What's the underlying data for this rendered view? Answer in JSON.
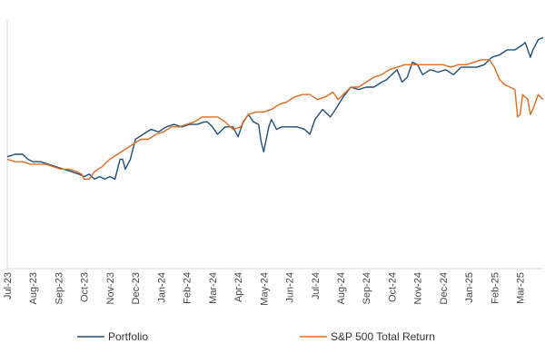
{
  "chart_data": {
    "type": "line",
    "title": "",
    "xlabel": "",
    "ylabel": "",
    "y_axis_labels_shown": false,
    "grid": false,
    "legend_position": "bottom",
    "x_ticks": [
      "Jul-23",
      "Aug-23",
      "Sep-23",
      "Oct-23",
      "Nov-23",
      "Dec-23",
      "Jan-24",
      "Feb-24",
      "Mar-24",
      "Apr-24",
      "May-24",
      "Jun-24",
      "Jul-24",
      "Aug-24",
      "Sep-24",
      "Oct-24",
      "Nov-24",
      "Dec-24",
      "Jan-25",
      "Feb-25",
      "Mar-25"
    ],
    "x_domain": [
      0,
      20.9
    ],
    "ylim": [
      0,
      100
    ],
    "series": [
      {
        "name": "Portfolio",
        "color": "#1F4E79",
        "points": [
          [
            0,
            45
          ],
          [
            0.3,
            46
          ],
          [
            0.6,
            46
          ],
          [
            0.8,
            44
          ],
          [
            1.0,
            43
          ],
          [
            1.3,
            43
          ],
          [
            1.6,
            42
          ],
          [
            1.9,
            41
          ],
          [
            2.2,
            40
          ],
          [
            2.5,
            39
          ],
          [
            2.8,
            38
          ],
          [
            3.0,
            37
          ],
          [
            3.2,
            38
          ],
          [
            3.4,
            36
          ],
          [
            3.6,
            37
          ],
          [
            3.8,
            36
          ],
          [
            4.0,
            37
          ],
          [
            4.2,
            36
          ],
          [
            4.4,
            44
          ],
          [
            4.5,
            44
          ],
          [
            4.6,
            40
          ],
          [
            4.8,
            44
          ],
          [
            5.0,
            52
          ],
          [
            5.3,
            54
          ],
          [
            5.6,
            56
          ],
          [
            5.9,
            55
          ],
          [
            6.2,
            57
          ],
          [
            6.5,
            58
          ],
          [
            6.8,
            57
          ],
          [
            7.1,
            58
          ],
          [
            7.4,
            58
          ],
          [
            7.7,
            59
          ],
          [
            7.8,
            59
          ],
          [
            8.0,
            57
          ],
          [
            8.2,
            54
          ],
          [
            8.5,
            57
          ],
          [
            8.8,
            57
          ],
          [
            9.0,
            53
          ],
          [
            9.2,
            59
          ],
          [
            9.4,
            62
          ],
          [
            9.6,
            59
          ],
          [
            9.8,
            58
          ],
          [
            9.9,
            51
          ],
          [
            10.0,
            47
          ],
          [
            10.1,
            52
          ],
          [
            10.2,
            57
          ],
          [
            10.3,
            60
          ],
          [
            10.5,
            56
          ],
          [
            10.7,
            57
          ],
          [
            11.0,
            57
          ],
          [
            11.3,
            57
          ],
          [
            11.6,
            56
          ],
          [
            11.8,
            54
          ],
          [
            12.0,
            60
          ],
          [
            12.3,
            64
          ],
          [
            12.6,
            61
          ],
          [
            12.8,
            64
          ],
          [
            13.1,
            69
          ],
          [
            13.4,
            73
          ],
          [
            13.7,
            72
          ],
          [
            14.0,
            73
          ],
          [
            14.3,
            73
          ],
          [
            14.6,
            75
          ],
          [
            14.8,
            76
          ],
          [
            15.0,
            78
          ],
          [
            15.2,
            80
          ],
          [
            15.4,
            75
          ],
          [
            15.6,
            77
          ],
          [
            15.8,
            83
          ],
          [
            16.0,
            82
          ],
          [
            16.2,
            78
          ],
          [
            16.5,
            80
          ],
          [
            16.8,
            79
          ],
          [
            17.1,
            80
          ],
          [
            17.4,
            78
          ],
          [
            17.7,
            81
          ],
          [
            18.0,
            81
          ],
          [
            18.3,
            81
          ],
          [
            18.6,
            82
          ],
          [
            18.9,
            85
          ],
          [
            19.2,
            86
          ],
          [
            19.5,
            88
          ],
          [
            19.8,
            88
          ],
          [
            20.1,
            90
          ],
          [
            20.2,
            91
          ],
          [
            20.4,
            85
          ],
          [
            20.5,
            88
          ],
          [
            20.7,
            92
          ],
          [
            20.9,
            93
          ]
        ]
      },
      {
        "name": "S&P 500 Total Return",
        "color": "#E26B1F",
        "points": [
          [
            0,
            44
          ],
          [
            0.3,
            43
          ],
          [
            0.6,
            43
          ],
          [
            0.9,
            42
          ],
          [
            1.2,
            42
          ],
          [
            1.5,
            42
          ],
          [
            1.8,
            41
          ],
          [
            2.1,
            40
          ],
          [
            2.4,
            40
          ],
          [
            2.7,
            39
          ],
          [
            2.9,
            38
          ],
          [
            3.0,
            36
          ],
          [
            3.2,
            36
          ],
          [
            3.4,
            39
          ],
          [
            3.7,
            41
          ],
          [
            4.0,
            44
          ],
          [
            4.3,
            46
          ],
          [
            4.6,
            48
          ],
          [
            4.9,
            50
          ],
          [
            5.2,
            52
          ],
          [
            5.5,
            52
          ],
          [
            5.8,
            54
          ],
          [
            6.1,
            55
          ],
          [
            6.4,
            57
          ],
          [
            6.7,
            57
          ],
          [
            7.0,
            58
          ],
          [
            7.3,
            59
          ],
          [
            7.6,
            61
          ],
          [
            7.9,
            61
          ],
          [
            8.2,
            61
          ],
          [
            8.5,
            59
          ],
          [
            8.8,
            56
          ],
          [
            9.1,
            57
          ],
          [
            9.4,
            62
          ],
          [
            9.7,
            63
          ],
          [
            10.0,
            63
          ],
          [
            10.3,
            64
          ],
          [
            10.6,
            66
          ],
          [
            10.9,
            67
          ],
          [
            11.2,
            69
          ],
          [
            11.5,
            70
          ],
          [
            11.8,
            70
          ],
          [
            12.1,
            68
          ],
          [
            12.4,
            69
          ],
          [
            12.7,
            71
          ],
          [
            12.9,
            68
          ],
          [
            13.1,
            70
          ],
          [
            13.4,
            73
          ],
          [
            13.7,
            73
          ],
          [
            14.0,
            75
          ],
          [
            14.3,
            77
          ],
          [
            14.6,
            78
          ],
          [
            14.9,
            80
          ],
          [
            15.2,
            81
          ],
          [
            15.5,
            82
          ],
          [
            15.8,
            82
          ],
          [
            16.1,
            82
          ],
          [
            16.4,
            82
          ],
          [
            16.7,
            82
          ],
          [
            17.0,
            82
          ],
          [
            17.3,
            81
          ],
          [
            17.6,
            82
          ],
          [
            17.9,
            82
          ],
          [
            18.2,
            83
          ],
          [
            18.5,
            84
          ],
          [
            18.8,
            84
          ],
          [
            19.0,
            81
          ],
          [
            19.2,
            76
          ],
          [
            19.4,
            74
          ],
          [
            19.6,
            73
          ],
          [
            19.8,
            72
          ],
          [
            19.9,
            61
          ],
          [
            20.0,
            62
          ],
          [
            20.1,
            70
          ],
          [
            20.3,
            68
          ],
          [
            20.4,
            62
          ],
          [
            20.5,
            64
          ],
          [
            20.7,
            70
          ],
          [
            20.9,
            68
          ]
        ]
      }
    ]
  }
}
